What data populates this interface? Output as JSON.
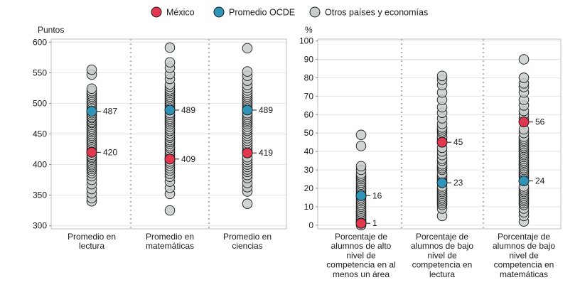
{
  "legend": {
    "items": [
      {
        "label": "México",
        "color": "#e0384f"
      },
      {
        "label": "Promedio OCDE",
        "color": "#2f94b6"
      },
      {
        "label": "Otros países y economías",
        "color": "#c8cccb"
      }
    ],
    "placement": "top-center"
  },
  "chart_data": [
    {
      "type": "scatter",
      "ylabel": "Puntos",
      "ylim": [
        295,
        605
      ],
      "yticks": [
        300,
        350,
        400,
        450,
        500,
        550,
        600
      ],
      "grid": true,
      "categories": [
        "Promedio en\nlectura",
        "Promedio en\nmatemáticas",
        "Promedio en\nciencias"
      ],
      "mexico": [
        420,
        409,
        419
      ],
      "oecd": [
        487,
        489,
        489
      ],
      "others": [
        [
          340,
          345,
          353,
          360,
          368,
          375,
          381,
          386,
          390,
          393,
          396,
          399,
          402,
          405,
          408,
          411,
          413,
          416,
          423,
          426,
          429,
          432,
          435,
          438,
          441,
          444,
          447,
          450,
          453,
          456,
          459,
          462,
          465,
          468,
          470,
          473,
          476,
          478,
          481,
          484,
          490,
          493,
          496,
          499,
          502,
          505,
          508,
          511,
          514,
          517,
          520,
          524,
          547,
          555
        ],
        [
          325,
          352,
          362,
          372,
          380,
          385,
          390,
          394,
          398,
          402,
          405,
          413,
          416,
          420,
          423,
          427,
          430,
          434,
          437,
          440,
          444,
          447,
          451,
          455,
          458,
          462,
          466,
          469,
          472,
          475,
          478,
          481,
          484,
          493,
          496,
          499,
          502,
          505,
          508,
          511,
          514,
          517,
          520,
          523,
          527,
          531,
          540,
          548,
          558,
          567,
          591
        ],
        [
          336,
          356,
          363,
          370,
          378,
          383,
          388,
          392,
          396,
          400,
          404,
          408,
          412,
          423,
          427,
          431,
          435,
          439,
          443,
          447,
          451,
          455,
          458,
          462,
          466,
          469,
          472,
          475,
          478,
          481,
          484,
          493,
          496,
          499,
          502,
          505,
          508,
          511,
          514,
          517,
          521,
          525,
          530,
          537,
          545,
          552,
          590
        ]
      ],
      "data_labels": {
        "mexico": [
          "420",
          "409",
          "419"
        ],
        "oecd": [
          "487",
          "489",
          "489"
        ]
      }
    },
    {
      "type": "scatter",
      "ylabel": "%",
      "ylim": [
        -2,
        101
      ],
      "yticks": [
        0,
        10,
        20,
        30,
        40,
        50,
        60,
        70,
        80,
        90,
        100
      ],
      "grid": true,
      "categories": [
        "Porcentaje de\nalumnos de alto\nnivel de\ncompetencia en al\nmenos un área",
        "Porcentaje de\nalumnos de bajo\nnivel de\ncompetencia en\nlectura",
        "Porcentaje de\nalumnos de bajo\nnivel de\ncompetencia en\nmatemáticas"
      ],
      "mexico": [
        1,
        45,
        56
      ],
      "oecd": [
        16,
        23,
        24
      ],
      "others": [
        [
          0,
          1,
          2,
          2,
          3,
          3,
          4,
          5,
          5,
          6,
          7,
          7,
          8,
          9,
          10,
          11,
          12,
          13,
          14,
          15,
          17,
          18,
          19,
          20,
          21,
          22,
          23,
          24,
          25,
          26,
          27,
          28,
          30,
          32,
          43,
          49
        ],
        [
          5,
          9,
          11,
          12,
          13,
          14,
          15,
          16,
          17,
          18,
          19,
          20,
          21,
          24,
          25,
          26,
          27,
          28,
          30,
          31,
          32,
          33,
          35,
          36,
          38,
          40,
          42,
          47,
          48,
          50,
          51,
          52,
          53,
          55,
          58,
          61,
          64,
          68,
          72,
          76,
          79,
          81
        ],
        [
          2,
          5,
          7,
          9,
          11,
          12,
          13,
          14,
          15,
          16,
          17,
          18,
          19,
          20,
          21,
          26,
          27,
          28,
          29,
          30,
          31,
          32,
          33,
          34,
          35,
          36,
          37,
          38,
          39,
          40,
          41,
          42,
          43,
          44,
          45,
          46,
          47,
          48,
          50,
          52,
          58,
          60,
          62,
          65,
          68,
          72,
          75,
          77,
          80,
          90
        ]
      ],
      "data_labels": {
        "mexico": [
          "1",
          "45",
          "56"
        ],
        "oecd": [
          "16",
          "23",
          "24"
        ]
      }
    }
  ]
}
